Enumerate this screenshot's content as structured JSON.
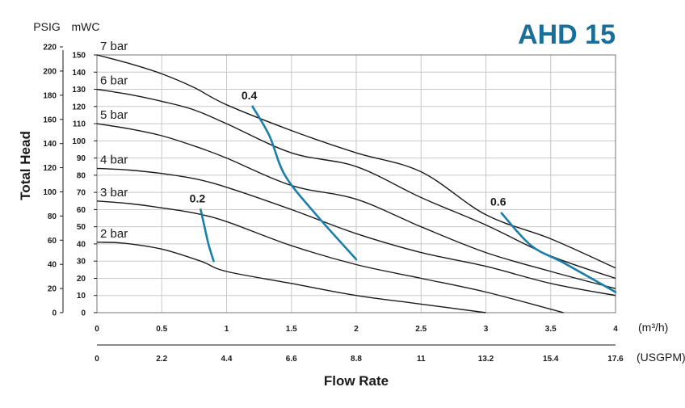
{
  "chart_data": {
    "type": "line",
    "title": "AHD 15",
    "xlabel": "Flow Rate",
    "ylabel": "Total Head",
    "x_unit": "(m³/h)",
    "x2_unit": "(USGPM)",
    "y_unit_left": "PSIG",
    "y_unit_right": "mWC",
    "xlim": [
      0,
      4
    ],
    "ylim": [
      0,
      150
    ],
    "x_ticks": [
      0,
      0.5,
      1,
      1.5,
      2,
      2.5,
      3,
      3.5,
      4
    ],
    "x_tick_labels": [
      "0",
      "0.5",
      "1",
      "1.5",
      "2",
      "2.5",
      "3",
      "3.5",
      "4"
    ],
    "x2_tick_labels": [
      "0",
      "2.2",
      "4.4",
      "6.6",
      "8.8",
      "11",
      "13.2",
      "15.4",
      "17.6"
    ],
    "y_mwc_ticks": [
      0,
      10,
      20,
      30,
      40,
      50,
      60,
      70,
      80,
      90,
      100,
      110,
      120,
      130,
      140,
      150
    ],
    "y_mwc_tick_labels": [
      "0",
      "10",
      "20",
      "30",
      "40",
      "50",
      "60",
      "70",
      "80",
      "90",
      "100",
      "110",
      "120",
      "130",
      "140",
      "150"
    ],
    "y_psig_tick_labels": [
      "0",
      "20",
      "40",
      "60",
      "80",
      "100",
      "120",
      "140",
      "160",
      "180",
      "200",
      "220"
    ],
    "psig_per_mwc": 1.4223,
    "grid": true,
    "series": [
      {
        "name": "2 bar",
        "x": [
          0,
          0.2,
          0.5,
          0.8,
          1.0,
          1.5,
          2.0,
          2.5,
          3.0
        ],
        "y": [
          41,
          40.5,
          37,
          30,
          24,
          17,
          10,
          5,
          0
        ]
      },
      {
        "name": "3 bar",
        "x": [
          0,
          0.25,
          0.5,
          0.75,
          1.0,
          1.5,
          2.0,
          2.5,
          3.0,
          3.5,
          3.6
        ],
        "y": [
          65,
          63.5,
          61,
          58,
          53,
          39,
          28,
          20,
          12,
          2,
          0
        ]
      },
      {
        "name": "4 bar",
        "x": [
          0,
          0.25,
          0.5,
          0.75,
          1.0,
          1.5,
          2.0,
          2.5,
          3.0,
          3.5,
          4.0
        ],
        "y": [
          84,
          83,
          81,
          78,
          73,
          60,
          46,
          35,
          27,
          17,
          10
        ]
      },
      {
        "name": "5 bar",
        "x": [
          0,
          0.25,
          0.5,
          0.75,
          1.0,
          1.5,
          2.0,
          2.5,
          3.0,
          3.5,
          4.0
        ],
        "y": [
          110,
          107,
          103,
          97,
          90,
          74,
          66,
          50,
          35,
          24,
          14
        ]
      },
      {
        "name": "6 bar",
        "x": [
          0,
          0.25,
          0.5,
          0.75,
          1.0,
          1.5,
          2.0,
          2.5,
          3.0,
          3.5,
          4.0
        ],
        "y": [
          130,
          127,
          123,
          118,
          110,
          93,
          85,
          67,
          51,
          33,
          20
        ]
      },
      {
        "name": "7 bar",
        "x": [
          0,
          0.25,
          0.5,
          0.75,
          1.0,
          1.5,
          2.0,
          2.5,
          3.0,
          3.5,
          4.0
        ],
        "y": [
          150,
          145,
          139,
          131,
          121,
          106,
          93,
          82,
          57,
          43,
          26
        ]
      }
    ],
    "air_consumption": [
      {
        "name": "0.2",
        "x": [
          0.8,
          0.83,
          0.86,
          0.9
        ],
        "y": [
          60,
          50,
          40,
          30
        ]
      },
      {
        "name": "0.4",
        "x": [
          1.2,
          1.33,
          1.45,
          1.68,
          2.0
        ],
        "y": [
          120,
          103,
          80,
          58,
          31
        ]
      },
      {
        "name": "0.6",
        "x": [
          3.12,
          3.35,
          3.6,
          4.0
        ],
        "y": [
          58,
          39,
          29,
          12
        ]
      }
    ]
  }
}
